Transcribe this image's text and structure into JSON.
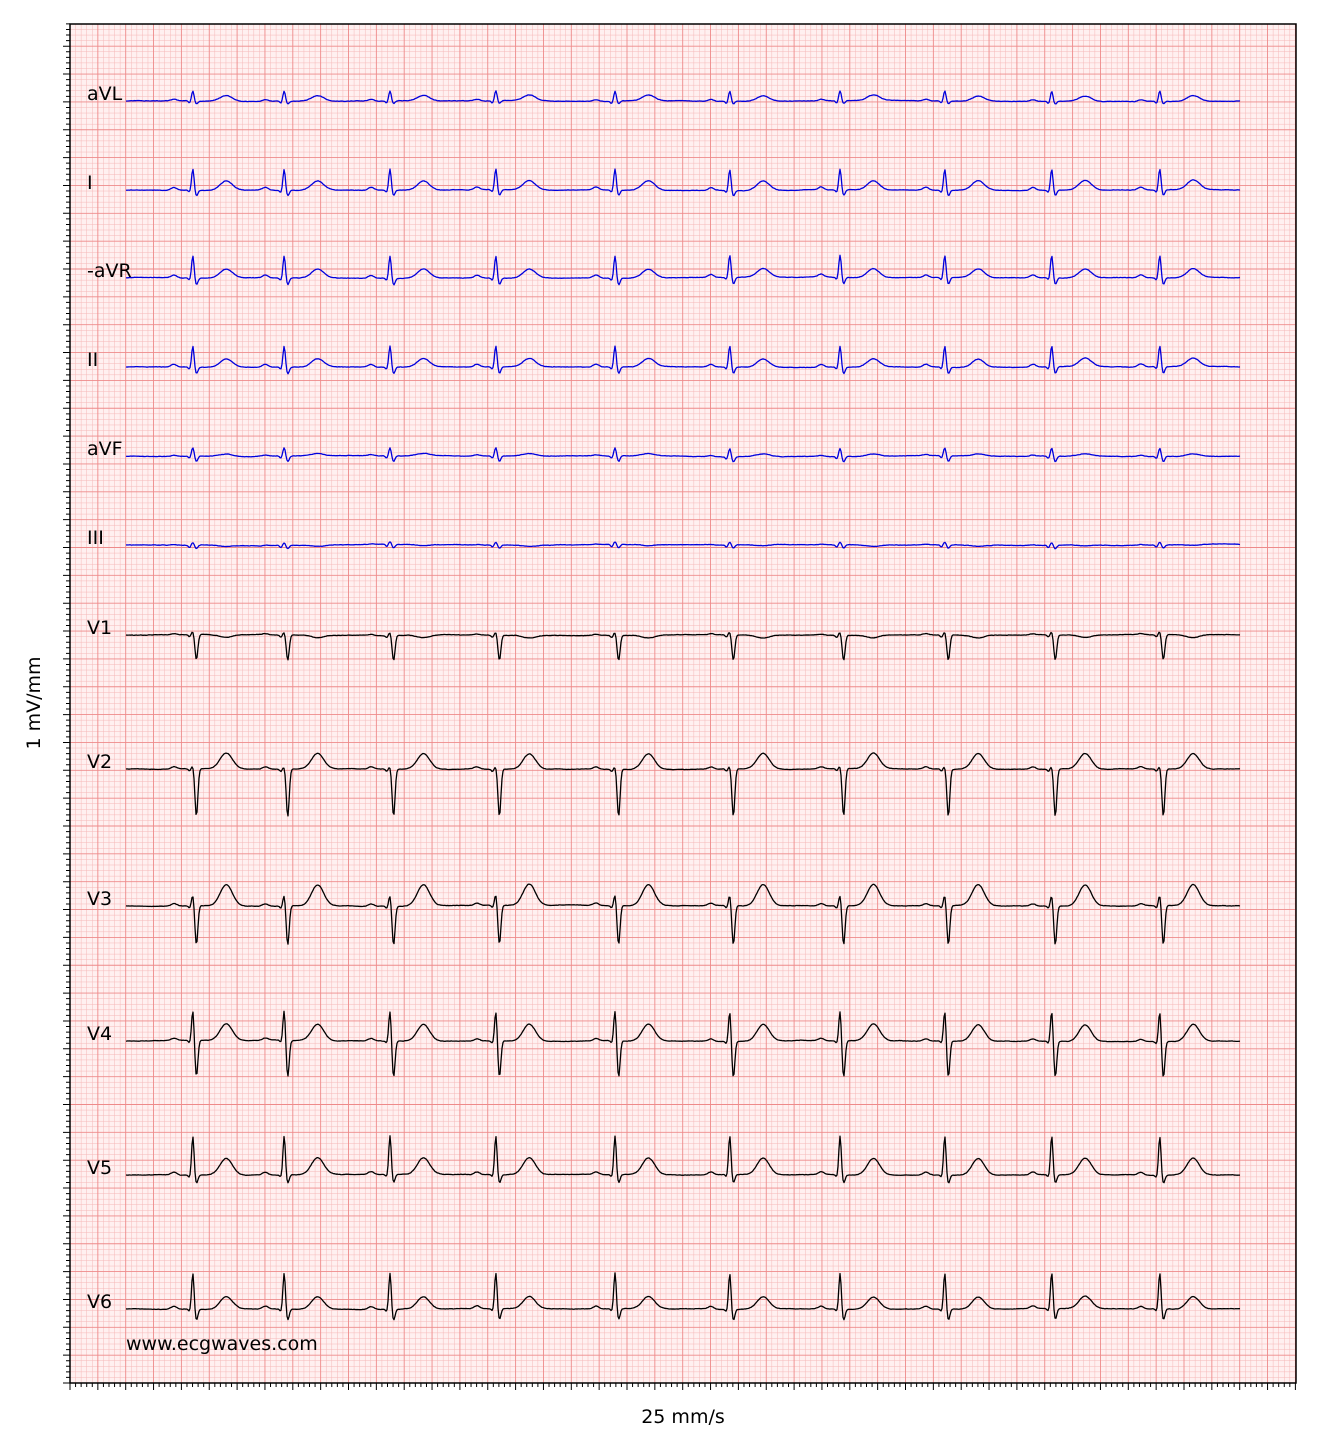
{
  "chart_data": {
    "type": "line",
    "xlabel": "25 mm/s",
    "ylabel": "1 mV/mm",
    "watermark": "www.ecgwaves.com",
    "grid": true,
    "colors": {
      "grid_minor": "#f6b8b8",
      "grid_major": "#ee8a8a",
      "background": "#fff0f0",
      "limb_trace": "#0000dd",
      "chest_trace": "#000000"
    },
    "rhythm": {
      "beat_times_s": [
        0.0,
        0.82,
        1.77,
        2.72,
        3.79,
        4.82,
        5.81,
        6.75,
        7.71,
        8.68,
        9.71
      ],
      "duration_s": 10.0
    },
    "leads": [
      {
        "name": "aVL",
        "color": "#0000dd",
        "r_mv": 0.18,
        "s_mv": -0.05,
        "t_mv": 0.1,
        "p_mv": 0.03
      },
      {
        "name": "I",
        "color": "#0000dd",
        "r_mv": 0.38,
        "s_mv": -0.1,
        "t_mv": 0.17,
        "p_mv": 0.05
      },
      {
        "name": "-aVR",
        "color": "#0000dd",
        "r_mv": 0.4,
        "s_mv": -0.12,
        "t_mv": 0.16,
        "p_mv": 0.05
      },
      {
        "name": "II",
        "color": "#0000dd",
        "r_mv": 0.38,
        "s_mv": -0.12,
        "t_mv": 0.15,
        "p_mv": 0.05
      },
      {
        "name": "aVF",
        "color": "#0000dd",
        "r_mv": 0.15,
        "s_mv": -0.1,
        "t_mv": 0.04,
        "p_mv": 0.02
      },
      {
        "name": "III",
        "color": "#0000dd",
        "r_mv": 0.05,
        "s_mv": -0.06,
        "t_mv": -0.02,
        "p_mv": 0.01
      },
      {
        "name": "V1",
        "color": "#000000",
        "r_mv": 0.06,
        "s_mv": -0.45,
        "t_mv": -0.05,
        "p_mv": 0.02
      },
      {
        "name": "V2",
        "color": "#000000",
        "r_mv": 0.05,
        "s_mv": -0.85,
        "t_mv": 0.28,
        "p_mv": 0.04
      },
      {
        "name": "V3",
        "color": "#000000",
        "r_mv": 0.2,
        "s_mv": -0.7,
        "t_mv": 0.38,
        "p_mv": 0.04
      },
      {
        "name": "V4",
        "color": "#000000",
        "r_mv": 0.55,
        "s_mv": -0.65,
        "t_mv": 0.3,
        "p_mv": 0.04
      },
      {
        "name": "V5",
        "color": "#000000",
        "r_mv": 0.7,
        "s_mv": -0.15,
        "t_mv": 0.3,
        "p_mv": 0.05
      },
      {
        "name": "V6",
        "color": "#000000",
        "r_mv": 0.65,
        "s_mv": -0.2,
        "t_mv": 0.22,
        "p_mv": 0.05
      }
    ]
  }
}
